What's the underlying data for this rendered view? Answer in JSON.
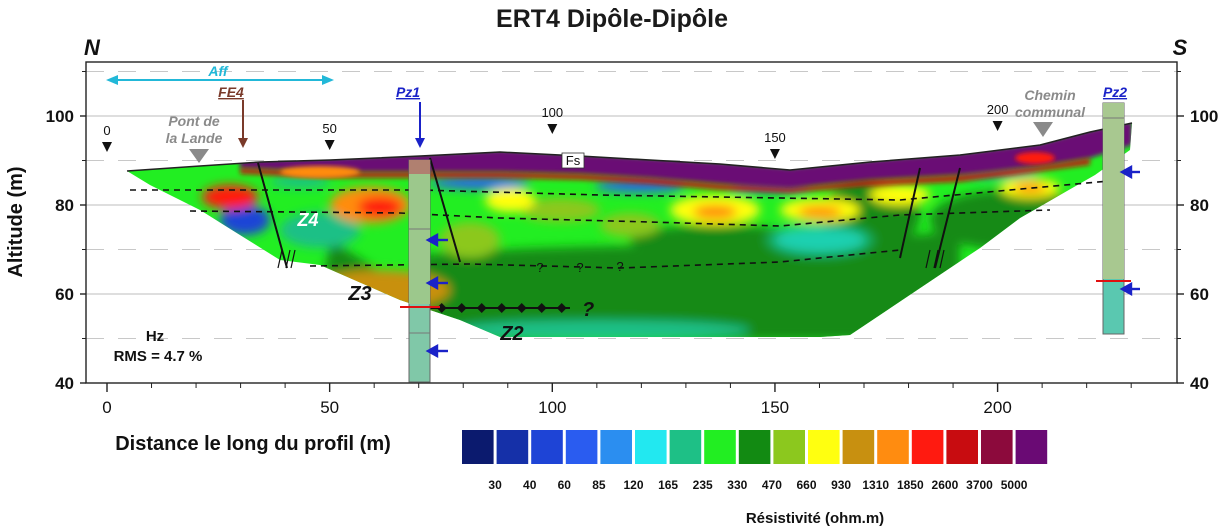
{
  "chart_data": {
    "type": "heatmap",
    "title": "ERT4 Dipôle-Dipôle",
    "xlabel": "Distance le long du profil (m)",
    "ylabel": "Altitude (m)",
    "xlim": [
      -5,
      240
    ],
    "ylim": [
      40,
      110
    ],
    "x_ticks": [
      0,
      50,
      100,
      150,
      200
    ],
    "y_ticks": [
      40,
      60,
      80,
      100
    ],
    "orientation_left": "N",
    "orientation_right": "S",
    "colorbar": {
      "title": "Résistivité (ohm.m)",
      "colors": [
        "#0b1a6e",
        "#1530a8",
        "#1e44d6",
        "#2a5cf0",
        "#2b8ef0",
        "#22e8f0",
        "#1ec086",
        "#22ee22",
        "#128a12",
        "#8cc81e",
        "#ffff10",
        "#c89010",
        "#ff8c10",
        "#ff1a10",
        "#c80c10",
        "#8c0a3c",
        "#6a0a74"
      ],
      "labels": [
        "30",
        "40",
        "60",
        "85",
        "120",
        "165",
        "235",
        "330",
        "470",
        "660",
        "930",
        "1310",
        "1850",
        "2600",
        "3700",
        "5000"
      ]
    },
    "stats": {
      "label": "Hz",
      "rms": "RMS = 4.7 %"
    },
    "profile_markers": [
      {
        "x": 0,
        "label": "0"
      },
      {
        "x": 50,
        "label": "50"
      },
      {
        "x": 100,
        "label": "100"
      },
      {
        "x": 150,
        "label": "150"
      },
      {
        "x": 200,
        "label": "200"
      }
    ],
    "annotations": {
      "aff": "Aff",
      "fe4": "FE4",
      "pz1": "Pz1",
      "pz2": "Pz2",
      "pont": [
        "Pont de",
        "la Lande"
      ],
      "chemin": [
        "Chemin",
        "communal"
      ],
      "fs": "Fs",
      "z2": "Z2",
      "z3": "Z3",
      "z4": "Z4",
      "question": "?"
    },
    "piezometers": [
      {
        "name": "Pz1",
        "x": 70,
        "top": 90,
        "bottom": 40,
        "water_level": 57
      },
      {
        "name": "Pz2",
        "x": 226,
        "top": 103,
        "bottom": 51,
        "water_level": 63
      }
    ],
    "grid": true
  }
}
